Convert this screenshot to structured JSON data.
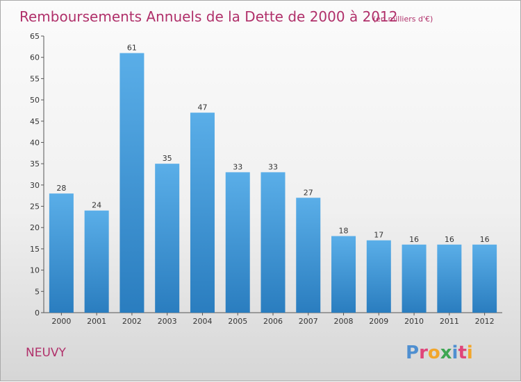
{
  "title": "Remboursements Annuels de la Dette de 2000 à 2012",
  "unit": "(en milliers d'€)",
  "town": "NEUVY",
  "logo": "Proxiti",
  "colors": {
    "bar_top": "#5aaee8",
    "bar_bottom": "#2a7dbf",
    "title": "#b0306a",
    "logo_letters": [
      "#4f8fd0",
      "#e0457a",
      "#f2a62b",
      "#3da652",
      "#4f8fd0",
      "#e0457a",
      "#f2a62b"
    ]
  },
  "chart_data": {
    "type": "bar",
    "title": "Remboursements Annuels de la Dette de 2000 à 2012",
    "categories": [
      "2000",
      "2001",
      "2002",
      "2003",
      "2004",
      "2005",
      "2006",
      "2007",
      "2008",
      "2009",
      "2010",
      "2011",
      "2012"
    ],
    "values": [
      28,
      24,
      61,
      35,
      47,
      33,
      33,
      27,
      18,
      17,
      16,
      16,
      16
    ],
    "ylim": [
      0,
      65
    ],
    "yticks": [
      0,
      5,
      10,
      15,
      20,
      25,
      30,
      35,
      40,
      45,
      50,
      55,
      60,
      65
    ],
    "grid": false,
    "legend": "none"
  }
}
